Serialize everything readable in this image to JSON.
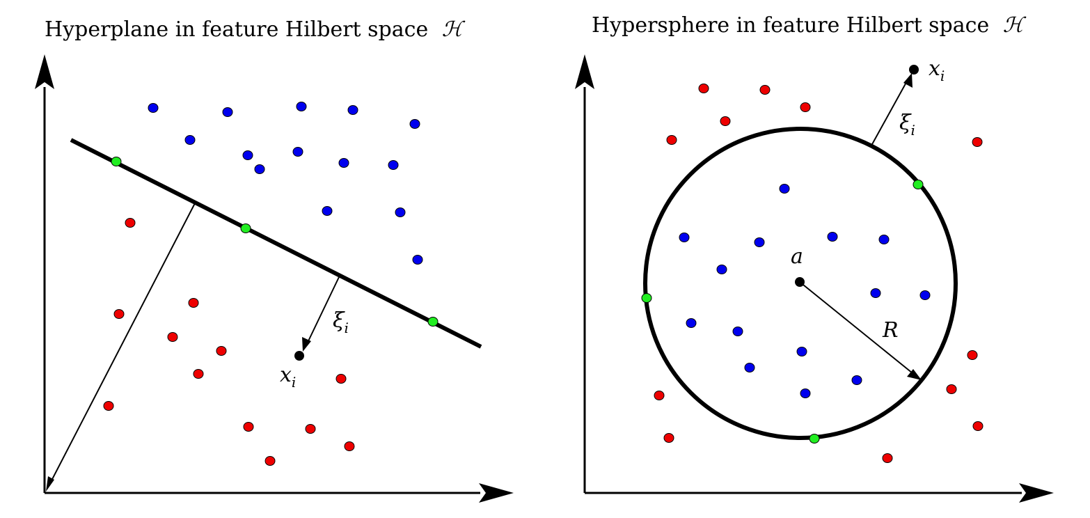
{
  "left_panel": {
    "title_text": "Hyperplane in feature Hilbert space",
    "title_symbol": "ℋ",
    "slack_symbol": "ξ",
    "slack_subscript": "i",
    "point_symbol": "x",
    "point_subscript": "i"
  },
  "right_panel": {
    "title_text": "Hypersphere in feature Hilbert space",
    "title_symbol": "ℋ",
    "slack_symbol": "ξ",
    "slack_subscript": "i",
    "point_symbol": "x",
    "point_subscript": "i",
    "center_label": "a",
    "radius_label": "R"
  },
  "colors": {
    "positive_class": "#0000ee",
    "negative_class": "#ee0000",
    "support_vector": "#22ee22",
    "outlier_point": "#000000",
    "boundary": "#000000"
  }
}
